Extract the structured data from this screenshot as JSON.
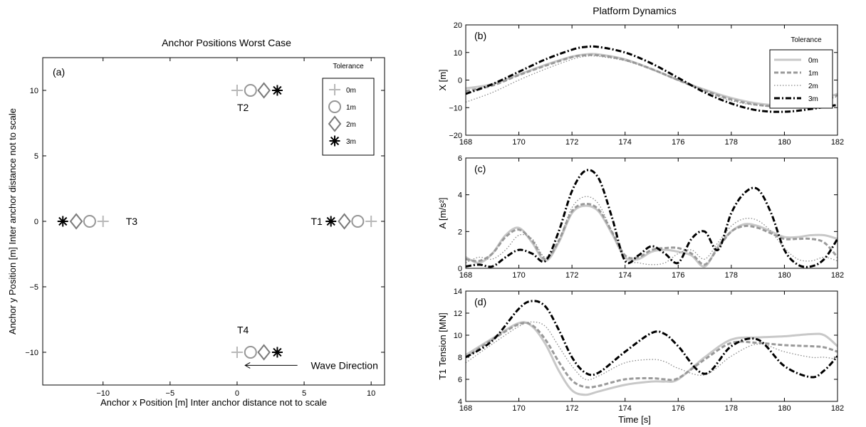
{
  "chart_data": [
    {
      "type": "scatter",
      "id": "a",
      "title": "Anchor Positions Worst Case",
      "panel_label": "(a)",
      "xlabel": "Anchor x Position [m] Inter anchor distance not to scale",
      "ylabel": "Anchor y Position [m] Inter anchor distance not to scale",
      "xlim": [
        -14.5,
        11
      ],
      "ylim": [
        -12.5,
        12.5
      ],
      "xticks": [
        -10,
        -5,
        0,
        5,
        10
      ],
      "yticks": [
        -10,
        -5,
        0,
        5,
        10
      ],
      "legend_title": "Tolerance",
      "legend_position": "top-right",
      "series": [
        {
          "name": "0m",
          "marker": "plus",
          "color": "#b8b8b8",
          "points": [
            [
              10,
              0
            ],
            [
              0,
              10
            ],
            [
              -10,
              0
            ],
            [
              0,
              -10
            ]
          ]
        },
        {
          "name": "1m",
          "marker": "circle",
          "color": "#969696",
          "points": [
            [
              9,
              0
            ],
            [
              1,
              10
            ],
            [
              -11,
              0
            ],
            [
              1,
              -10
            ]
          ]
        },
        {
          "name": "2m",
          "marker": "diamond",
          "color": "#7a7a7a",
          "points": [
            [
              8,
              0
            ],
            [
              2,
              10
            ],
            [
              -12,
              0
            ],
            [
              2,
              -10
            ]
          ]
        },
        {
          "name": "3m",
          "marker": "asterisk",
          "color": "#000000",
          "points": [
            [
              7,
              0
            ],
            [
              3,
              10
            ],
            [
              -13,
              0
            ],
            [
              3,
              -10
            ]
          ]
        }
      ],
      "annotations": [
        {
          "text": "T1",
          "x": 5.5,
          "y": 0
        },
        {
          "text": "T2",
          "x": 0,
          "y": 8.7
        },
        {
          "text": "T3",
          "x": -8.3,
          "y": 0
        },
        {
          "text": "T4",
          "x": 0,
          "y": -8.3
        },
        {
          "text": "Wave Direction",
          "x": 5.5,
          "y": -11
        }
      ],
      "arrow": {
        "from": [
          4.5,
          -11
        ],
        "to": [
          0.6,
          -11
        ]
      }
    }
  ],
  "figure_title": "Platform Dynamics",
  "time_axis": {
    "label": "Time [s]",
    "xlim": [
      168,
      182
    ],
    "xticks": [
      168,
      170,
      172,
      174,
      176,
      178,
      180,
      182
    ]
  },
  "legend": {
    "title": "Tolerance",
    "entries": [
      "0m",
      "1m",
      "2m",
      "3m"
    ]
  },
  "styles": [
    {
      "color": "#c8c8c8",
      "dash": "",
      "width": 3
    },
    {
      "color": "#9a9a9a",
      "dash": "6,3",
      "width": 3
    },
    {
      "color": "#8a8a8a",
      "dash": "1.5,2.5",
      "width": 1.3
    },
    {
      "color": "#000000",
      "dash": "8,3,2,3",
      "width": 3
    }
  ],
  "line_panels": [
    {
      "type": "line",
      "panel_label": "(b)",
      "ylabel": "X [m]",
      "ylim": [
        -20,
        20
      ],
      "yticks": [
        -20,
        -10,
        0,
        10,
        20
      ],
      "show_legend": true,
      "legend_position": "top-right",
      "x": [
        168,
        169,
        170,
        171,
        172,
        172.5,
        173,
        174,
        175,
        176,
        177,
        178,
        179,
        180,
        181,
        182
      ],
      "series": [
        {
          "name": "0m",
          "values": [
            -3,
            -1.5,
            2,
            5.5,
            8.5,
            9.3,
            9.3,
            7.5,
            4,
            0,
            -3.5,
            -6.5,
            -8.5,
            -9.2,
            -8.2,
            -5
          ]
        },
        {
          "name": "1m",
          "values": [
            -4,
            -2,
            1.8,
            5.2,
            8.3,
            9,
            9,
            7.3,
            4,
            0,
            -3.8,
            -7,
            -9,
            -9.5,
            -8.5,
            -5.5
          ]
        },
        {
          "name": "2m",
          "values": [
            -8,
            -4.5,
            0,
            4,
            7.5,
            8.6,
            8.6,
            7,
            3.8,
            0,
            -4,
            -7.5,
            -9.2,
            -9.6,
            -8.7,
            -6
          ]
        },
        {
          "name": "3m",
          "values": [
            -5,
            -1.5,
            3,
            7.5,
            11,
            12,
            12,
            10,
            6,
            0.8,
            -4.5,
            -8.5,
            -11,
            -11.5,
            -10.5,
            -9
          ]
        }
      ]
    },
    {
      "type": "line",
      "panel_label": "(c)",
      "ylabel": "A [m/s²]",
      "ylim": [
        0,
        6
      ],
      "yticks": [
        0,
        2,
        4,
        6
      ],
      "show_legend": false,
      "x": [
        168,
        168.5,
        169,
        169.5,
        170,
        170.5,
        171,
        171.5,
        172,
        172.5,
        173,
        173.5,
        174,
        174.5,
        175,
        175.5,
        176,
        176.5,
        177,
        177.5,
        178,
        178.5,
        179,
        179.5,
        180,
        180.5,
        181,
        181.5,
        182
      ],
      "series": [
        {
          "name": "0m",
          "values": [
            0.6,
            0.3,
            0.8,
            1.8,
            2.2,
            1.4,
            0.4,
            1.4,
            3.0,
            3.4,
            3.1,
            1.9,
            0.6,
            0.5,
            0.9,
            1.0,
            0.9,
            0.7,
            0.1,
            1.2,
            2.0,
            2.4,
            2.3,
            2.0,
            1.7,
            1.7,
            1.8,
            1.8,
            1.6
          ]
        },
        {
          "name": "1m",
          "values": [
            0.5,
            0.4,
            0.8,
            1.7,
            2.1,
            1.5,
            0.5,
            1.5,
            3.1,
            3.5,
            3.2,
            2.0,
            0.7,
            0.6,
            1.0,
            1.1,
            1.1,
            0.8,
            0.2,
            1.1,
            2.0,
            2.3,
            2.2,
            1.9,
            1.6,
            1.6,
            1.6,
            1.4,
            0.6
          ]
        },
        {
          "name": "2m",
          "values": [
            0.3,
            0.6,
            0.5,
            1.0,
            1.8,
            1.6,
            0.6,
            1.5,
            3.3,
            3.9,
            3.5,
            2.0,
            0.5,
            0.3,
            0.2,
            0.3,
            0.8,
            1.0,
            0.5,
            1.4,
            2.3,
            2.7,
            2.6,
            2.0,
            1.1,
            0.5,
            0.4,
            0.6,
            0.4
          ]
        },
        {
          "name": "3m",
          "values": [
            0.1,
            0.2,
            0.1,
            0.6,
            1.0,
            0.8,
            0.4,
            2.0,
            4.2,
            5.3,
            4.9,
            2.8,
            0.4,
            0.7,
            1.2,
            0.8,
            0.3,
            1.6,
            2.0,
            1.0,
            3.0,
            4.1,
            4.3,
            3.0,
            1.0,
            0.2,
            0.1,
            0.5,
            1.6
          ]
        }
      ]
    },
    {
      "type": "line",
      "panel_label": "(d)",
      "ylabel": "T1 Tension [MN]",
      "ylim": [
        4,
        14
      ],
      "yticks": [
        4,
        6,
        8,
        10,
        12,
        14
      ],
      "show_legend": false,
      "x": [
        168,
        169,
        170,
        170.5,
        171,
        171.5,
        172,
        172.5,
        173,
        174,
        175,
        175.5,
        176,
        177,
        178,
        179,
        180,
        181,
        181.5,
        182
      ],
      "series": [
        {
          "name": "0m",
          "values": [
            8.2,
            9.7,
            11.1,
            10.8,
            9.2,
            6.8,
            5.0,
            4.6,
            4.9,
            5.5,
            5.8,
            5.8,
            6.0,
            8.0,
            9.6,
            9.8,
            9.9,
            10.1,
            10.0,
            9.0
          ]
        },
        {
          "name": "1m",
          "values": [
            8.0,
            9.6,
            11.0,
            10.9,
            9.6,
            7.6,
            5.9,
            5.3,
            5.4,
            6.0,
            6.1,
            6.0,
            6.1,
            7.8,
            9.3,
            9.3,
            9.1,
            9.0,
            8.9,
            8.5
          ]
        },
        {
          "name": "2m",
          "values": [
            7.5,
            9.2,
            10.8,
            11.2,
            10.8,
            9.0,
            7.2,
            6.0,
            6.3,
            7.5,
            7.8,
            7.6,
            7.0,
            6.4,
            8.1,
            9.2,
            8.5,
            8.0,
            8.0,
            7.8
          ]
        },
        {
          "name": "3m",
          "values": [
            8.0,
            9.5,
            12.4,
            13.1,
            12.6,
            10.5,
            8.0,
            6.6,
            6.6,
            8.5,
            10.2,
            10.1,
            9.0,
            6.5,
            9.0,
            9.6,
            7.2,
            6.2,
            6.8,
            8.1
          ]
        }
      ]
    }
  ]
}
